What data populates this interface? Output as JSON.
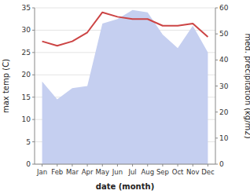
{
  "chart_data": {
    "type": "line",
    "xlabel": "date (month)",
    "ylabel": "max temp (C)",
    "y2label": "med. precipitation (kg/m2)",
    "categories": [
      "Jan",
      "Feb",
      "Mar",
      "Apr",
      "May",
      "Jun",
      "Jul",
      "Aug",
      "Sep",
      "Oct",
      "Nov",
      "Dec"
    ],
    "series": [
      {
        "type": "area",
        "axis": "y2",
        "color": "#c5cff0",
        "values": [
          31.714285714285715,
          24.857142857142858,
          29.142857142857142,
          30,
          54,
          55.714285714285715,
          59.142857142857146,
          58.285714285714285,
          49.714285714285715,
          44.57142857142857,
          53.142857142857146,
          42.857142857142854
        ]
      },
      {
        "type": "line",
        "color": "#cc4444",
        "values": [
          27.5,
          26.5,
          27.5,
          29.5,
          34.0,
          33.0,
          32.5,
          32.5,
          31.0,
          31.0,
          31.5,
          28.5
        ]
      }
    ],
    "ylim": [
      0,
      35
    ],
    "yticks": [
      0,
      5,
      10,
      15,
      20,
      25,
      30,
      35
    ],
    "y2lim": [
      0,
      60
    ],
    "y2ticks": [
      0,
      10,
      20,
      30,
      40,
      50,
      60
    ],
    "grid": true
  }
}
